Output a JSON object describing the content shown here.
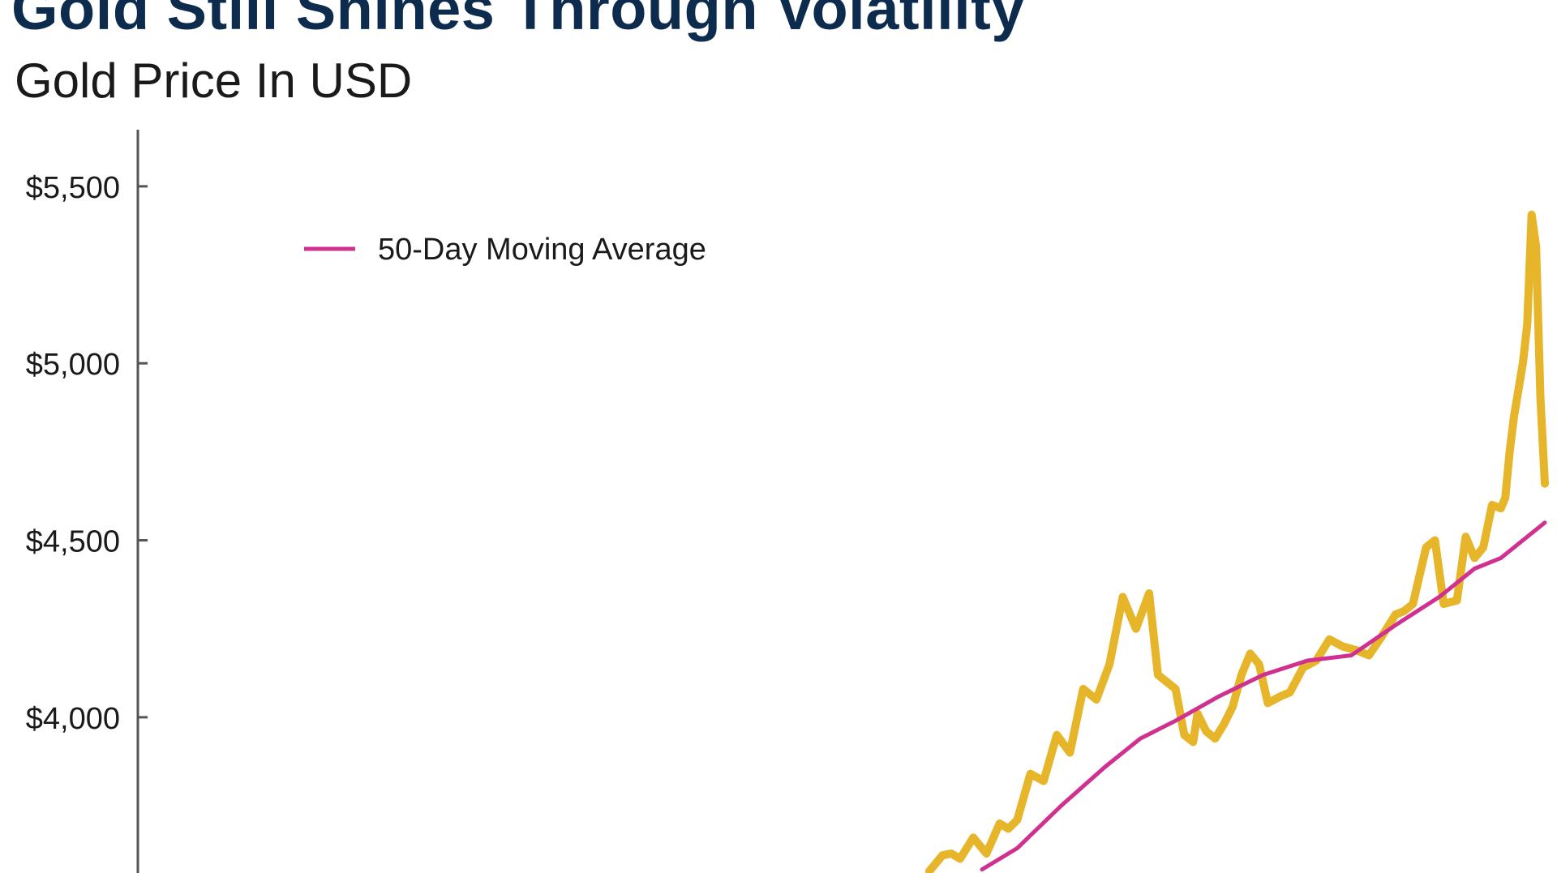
{
  "header": {
    "title": "Gold Still Shines Through Volatility",
    "subtitle": "Gold Price In USD"
  },
  "chart_data": {
    "type": "line",
    "title": "Gold Still Shines Through Volatility",
    "subtitle": "Gold Price In USD",
    "xlabel": "",
    "ylabel": "",
    "ylim": [
      3560,
      5660
    ],
    "yticks": [
      {
        "value": 5500,
        "label": "$5,500"
      },
      {
        "value": 5000,
        "label": "$5,000"
      },
      {
        "value": 4500,
        "label": "$4,500"
      },
      {
        "value": 4000,
        "label": "$4,000"
      }
    ],
    "x_index_range": [
      0,
      320
    ],
    "grid": false,
    "legend": {
      "placement": "top-left",
      "entries": [
        {
          "label": "50-Day Moving Average",
          "color": "#d0308f",
          "series": "ma50"
        }
      ]
    },
    "series": [
      {
        "id": "price",
        "color": "#e6b529",
        "x": [
          180,
          183,
          185,
          187,
          190,
          193,
          196,
          198,
          200,
          203,
          206,
          209,
          212,
          215,
          218,
          221,
          224,
          227,
          230,
          232,
          234,
          236,
          238,
          240,
          241,
          243,
          245,
          247,
          249,
          251,
          253,
          255,
          257,
          260,
          262,
          265,
          268,
          271,
          274,
          277,
          280,
          283,
          286,
          288,
          290,
          293,
          295,
          297,
          300,
          302,
          304,
          306,
          308,
          310,
          311,
          312,
          313,
          315,
          316,
          317,
          318,
          319,
          320
        ],
        "values": [
          3565,
          3610,
          3615,
          3600,
          3660,
          3615,
          3700,
          3685,
          3710,
          3840,
          3820,
          3950,
          3900,
          4080,
          4050,
          4150,
          4340,
          4250,
          4350,
          4120,
          4100,
          4080,
          3950,
          3930,
          4010,
          3960,
          3940,
          3980,
          4030,
          4120,
          4180,
          4150,
          4040,
          4060,
          4070,
          4140,
          4160,
          4220,
          4200,
          4190,
          4175,
          4230,
          4290,
          4300,
          4320,
          4480,
          4500,
          4320,
          4330,
          4510,
          4450,
          4480,
          4600,
          4590,
          4620,
          4750,
          4850,
          5000,
          5110,
          5420,
          5330,
          4900,
          4660
        ]
      },
      {
        "id": "ma50",
        "name": "50-Day Moving Average",
        "color": "#d0308f",
        "x": [
          192,
          200,
          210,
          220,
          228,
          236,
          246,
          256,
          266,
          276,
          286,
          296,
          304,
          310,
          316,
          320
        ],
        "values": [
          3570,
          3630,
          3750,
          3860,
          3940,
          3990,
          4060,
          4120,
          4160,
          4175,
          4260,
          4340,
          4420,
          4450,
          4510,
          4550
        ]
      }
    ]
  }
}
